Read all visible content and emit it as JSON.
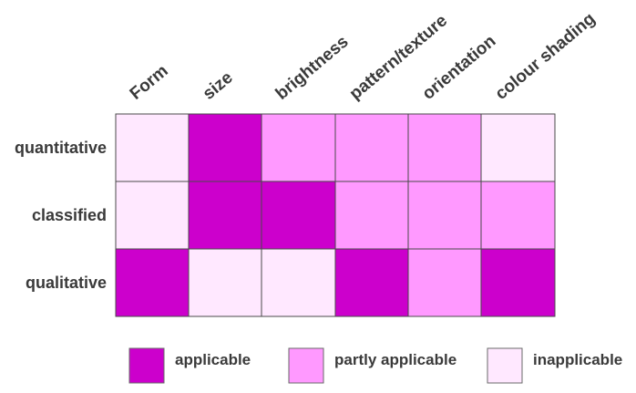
{
  "chart_data": {
    "type": "heatmap",
    "columns": [
      "Form",
      "size",
      "brightness",
      "pattern/texture",
      "orientation",
      "colour shading"
    ],
    "rows": [
      "quantitative",
      "classified",
      "qualitative"
    ],
    "levels": [
      "applicable",
      "partly applicable",
      "inapplicable"
    ],
    "level_colors": {
      "applicable": "#cc00cc",
      "partly applicable": "#ff99ff",
      "inapplicable": "#ffe8ff"
    },
    "values": [
      [
        "inapplicable",
        "applicable",
        "partly applicable",
        "partly applicable",
        "partly applicable",
        "inapplicable"
      ],
      [
        "inapplicable",
        "applicable",
        "applicable",
        "partly applicable",
        "partly applicable",
        "partly applicable"
      ],
      [
        "applicable",
        "inapplicable",
        "inapplicable",
        "applicable",
        "partly applicable",
        "applicable"
      ]
    ],
    "legend": [
      {
        "level": "applicable",
        "label": "applicable"
      },
      {
        "level": "partly applicable",
        "label": "partly applicable"
      },
      {
        "level": "inapplicable",
        "label": "inapplicable"
      }
    ],
    "legend_position": "bottom"
  }
}
